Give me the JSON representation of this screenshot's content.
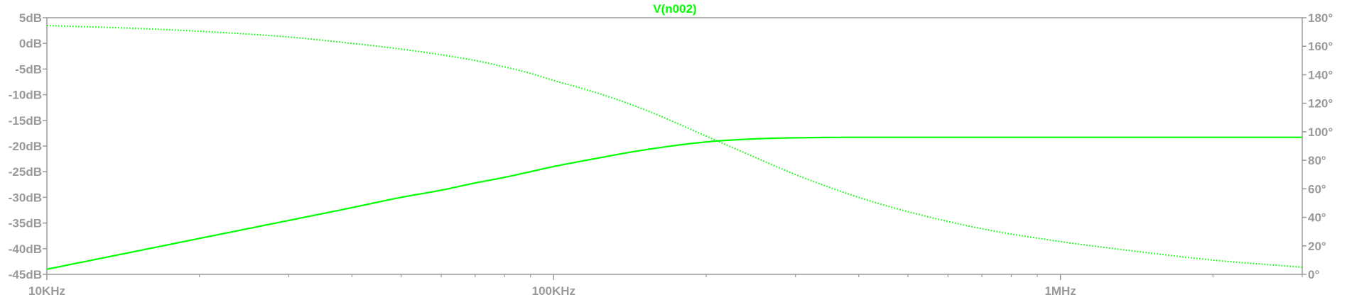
{
  "chart_data": {
    "type": "line",
    "title": "V(n002)",
    "x_scale": "log",
    "xlim": [
      10000,
      3000000
    ],
    "x_ticks": [
      {
        "value": 10000,
        "label": "10KHz"
      },
      {
        "value": 100000,
        "label": "100KHz"
      },
      {
        "value": 1000000,
        "label": "1MHz"
      }
    ],
    "y_left": {
      "unit": "dB",
      "ylim": [
        -45,
        5
      ],
      "ticks": [
        {
          "value": 5,
          "label": "5dB"
        },
        {
          "value": 0,
          "label": "0dB"
        },
        {
          "value": -5,
          "label": "-5dB"
        },
        {
          "value": -10,
          "label": "-10dB"
        },
        {
          "value": -15,
          "label": "-15dB"
        },
        {
          "value": -20,
          "label": "-20dB"
        },
        {
          "value": -25,
          "label": "-25dB"
        },
        {
          "value": -30,
          "label": "-30dB"
        },
        {
          "value": -35,
          "label": "-35dB"
        },
        {
          "value": -40,
          "label": "-40dB"
        },
        {
          "value": -45,
          "label": "-45dB"
        }
      ]
    },
    "y_right": {
      "unit": "°",
      "ylim": [
        0,
        180
      ],
      "ticks": [
        {
          "value": 180,
          "label": "180°"
        },
        {
          "value": 160,
          "label": "160°"
        },
        {
          "value": 140,
          "label": "140°"
        },
        {
          "value": 120,
          "label": "120°"
        },
        {
          "value": 100,
          "label": "100°"
        },
        {
          "value": 80,
          "label": "80°"
        },
        {
          "value": 60,
          "label": "60°"
        },
        {
          "value": 40,
          "label": "40°"
        },
        {
          "value": 20,
          "label": "20°"
        },
        {
          "value": 0,
          "label": "0°"
        }
      ]
    },
    "grid": false,
    "colors": {
      "trace": "#00ff00",
      "axis": "#9a9a9a",
      "background": "#ffffff"
    },
    "series": [
      {
        "axis": "left",
        "style": "solid",
        "x": [
          10000,
          15000,
          20000,
          30000,
          40000,
          50000,
          60000,
          70000,
          80000,
          90000,
          100000,
          120000,
          150000,
          200000,
          250000,
          300000,
          400000,
          600000,
          1000000,
          2000000,
          3000000
        ],
        "y": [
          -44.0,
          -40.5,
          -38.0,
          -34.5,
          -32.0,
          -30.0,
          -28.6,
          -27.2,
          -26.1,
          -25.0,
          -24.0,
          -22.5,
          -20.8,
          -19.2,
          -18.6,
          -18.4,
          -18.3,
          -18.3,
          -18.3,
          -18.3,
          -18.3
        ]
      },
      {
        "axis": "right",
        "style": "dotted",
        "x": [
          10000,
          15000,
          20000,
          30000,
          40000,
          50000,
          60000,
          70000,
          80000,
          90000,
          100000,
          120000,
          150000,
          200000,
          250000,
          300000,
          400000,
          500000,
          700000,
          1000000,
          1500000,
          2000000,
          3000000
        ],
        "y": [
          174.5,
          172.5,
          170.5,
          166.5,
          162,
          158,
          154,
          150,
          145.5,
          141,
          136,
          128,
          116,
          97,
          82,
          70,
          54,
          44,
          32,
          23,
          15,
          10,
          5
        ]
      }
    ]
  }
}
